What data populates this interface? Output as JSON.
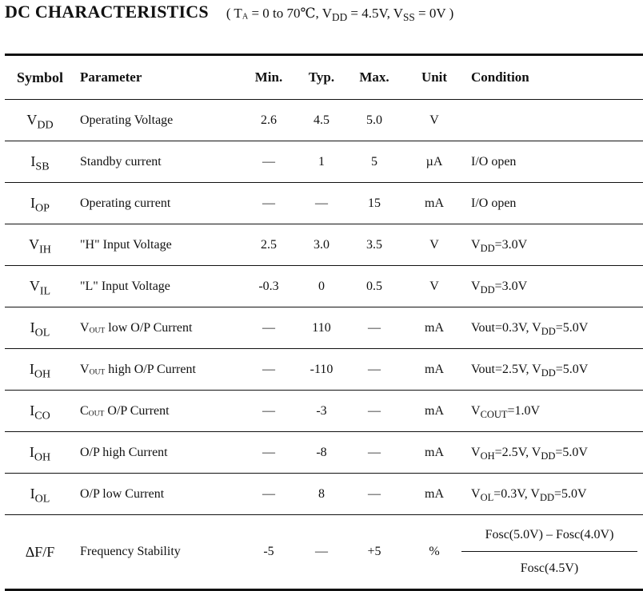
{
  "header": {
    "title": "DC CHARACTERISTICS",
    "conditions": {
      "open": "( T",
      "ta_sub": "A",
      "ta_rest": " = 0 to 70℃, V",
      "vdd_sub": "DD",
      "vdd_rest": " = 4.5V, V",
      "vss_sub": "SS",
      "vss_rest": " = 0V )"
    }
  },
  "table": {
    "columns": {
      "symbol": "Symbol",
      "parameter": "Parameter",
      "min": "Min.",
      "typ": "Typ.",
      "max": "Max.",
      "unit": "Unit",
      "condition": "Condition"
    },
    "rows": [
      {
        "sym": "V",
        "sym_sub": "DD",
        "param": "Operating Voltage",
        "min": "2.6",
        "typ": "4.5",
        "max": "5.0",
        "unit": "V",
        "cond": ""
      },
      {
        "sym": "I",
        "sym_sub": "SB",
        "param": "Standby current",
        "min": "—",
        "typ": "1",
        "max": "5",
        "unit": "µA",
        "cond": "I/O open"
      },
      {
        "sym": "I",
        "sym_sub": "OP",
        "param": "Operating current",
        "min": "—",
        "typ": "—",
        "max": "15",
        "unit": "mA",
        "cond": "I/O open"
      },
      {
        "sym": "V",
        "sym_sub": "IH",
        "param": "\"H\" Input Voltage",
        "min": "2.5",
        "typ": "3.0",
        "max": "3.5",
        "unit": "V",
        "cond_a": "V",
        "cond_a_sub": "DD",
        "cond_a_rest": "=3.0V"
      },
      {
        "sym": "V",
        "sym_sub": "IL",
        "param": "\"L\" Input Voltage",
        "min": "-0.3",
        "typ": "0",
        "max": "0.5",
        "unit": "V",
        "cond_a": "V",
        "cond_a_sub": "DD",
        "cond_a_rest": "=3.0V"
      },
      {
        "sym": "I",
        "sym_sub": "OL",
        "param_a": "V",
        "param_sub": "OUT",
        "param_rest": " low O/P Current",
        "min": "—",
        "typ": "110",
        "max": "—",
        "unit": "mA",
        "cond_a": "Vout=0.3V, V",
        "cond_a_sub": "DD",
        "cond_a_rest": "=5.0V"
      },
      {
        "sym": "I",
        "sym_sub": "OH",
        "param_a": "V",
        "param_sub": "OUT",
        "param_rest": " high O/P Current",
        "min": "—",
        "typ": "-110",
        "max": "—",
        "unit": "mA",
        "cond_a": "Vout=2.5V, V",
        "cond_a_sub": "DD",
        "cond_a_rest": "=5.0V"
      },
      {
        "sym": "I",
        "sym_sub": "CO",
        "param_a": "C",
        "param_sub": "OUT",
        "param_rest": " O/P Current",
        "min": "—",
        "typ": "-3",
        "max": "—",
        "unit": "mA",
        "cond_a": "V",
        "cond_a_sub": "COUT",
        "cond_a_rest": "=1.0V"
      },
      {
        "sym": "I",
        "sym_sub": "OH",
        "param": "O/P high Current",
        "min": "—",
        "typ": "-8",
        "max": "—",
        "unit": "mA",
        "cond_a": "V",
        "cond_a_sub": "OH",
        "cond_a_rest": "=2.5V, V",
        "cond_b_sub": "DD",
        "cond_b_rest": "=5.0V"
      },
      {
        "sym": "I",
        "sym_sub": "OL",
        "param": "O/P low Current",
        "min": "—",
        "typ": "8",
        "max": "—",
        "unit": "mA",
        "cond_a": "V",
        "cond_a_sub": "OL",
        "cond_a_rest": "=0.3V, V",
        "cond_b_sub": "DD",
        "cond_b_rest": "=5.0V"
      },
      {
        "sym_full": "ΔF/F",
        "param": "Frequency Stability",
        "min": "-5",
        "typ": "—",
        "max": "+5",
        "unit": "%",
        "cond_num": "Fosc(5.0V) – Fosc(4.0V)",
        "cond_den": "Fosc(4.5V)"
      }
    ]
  }
}
